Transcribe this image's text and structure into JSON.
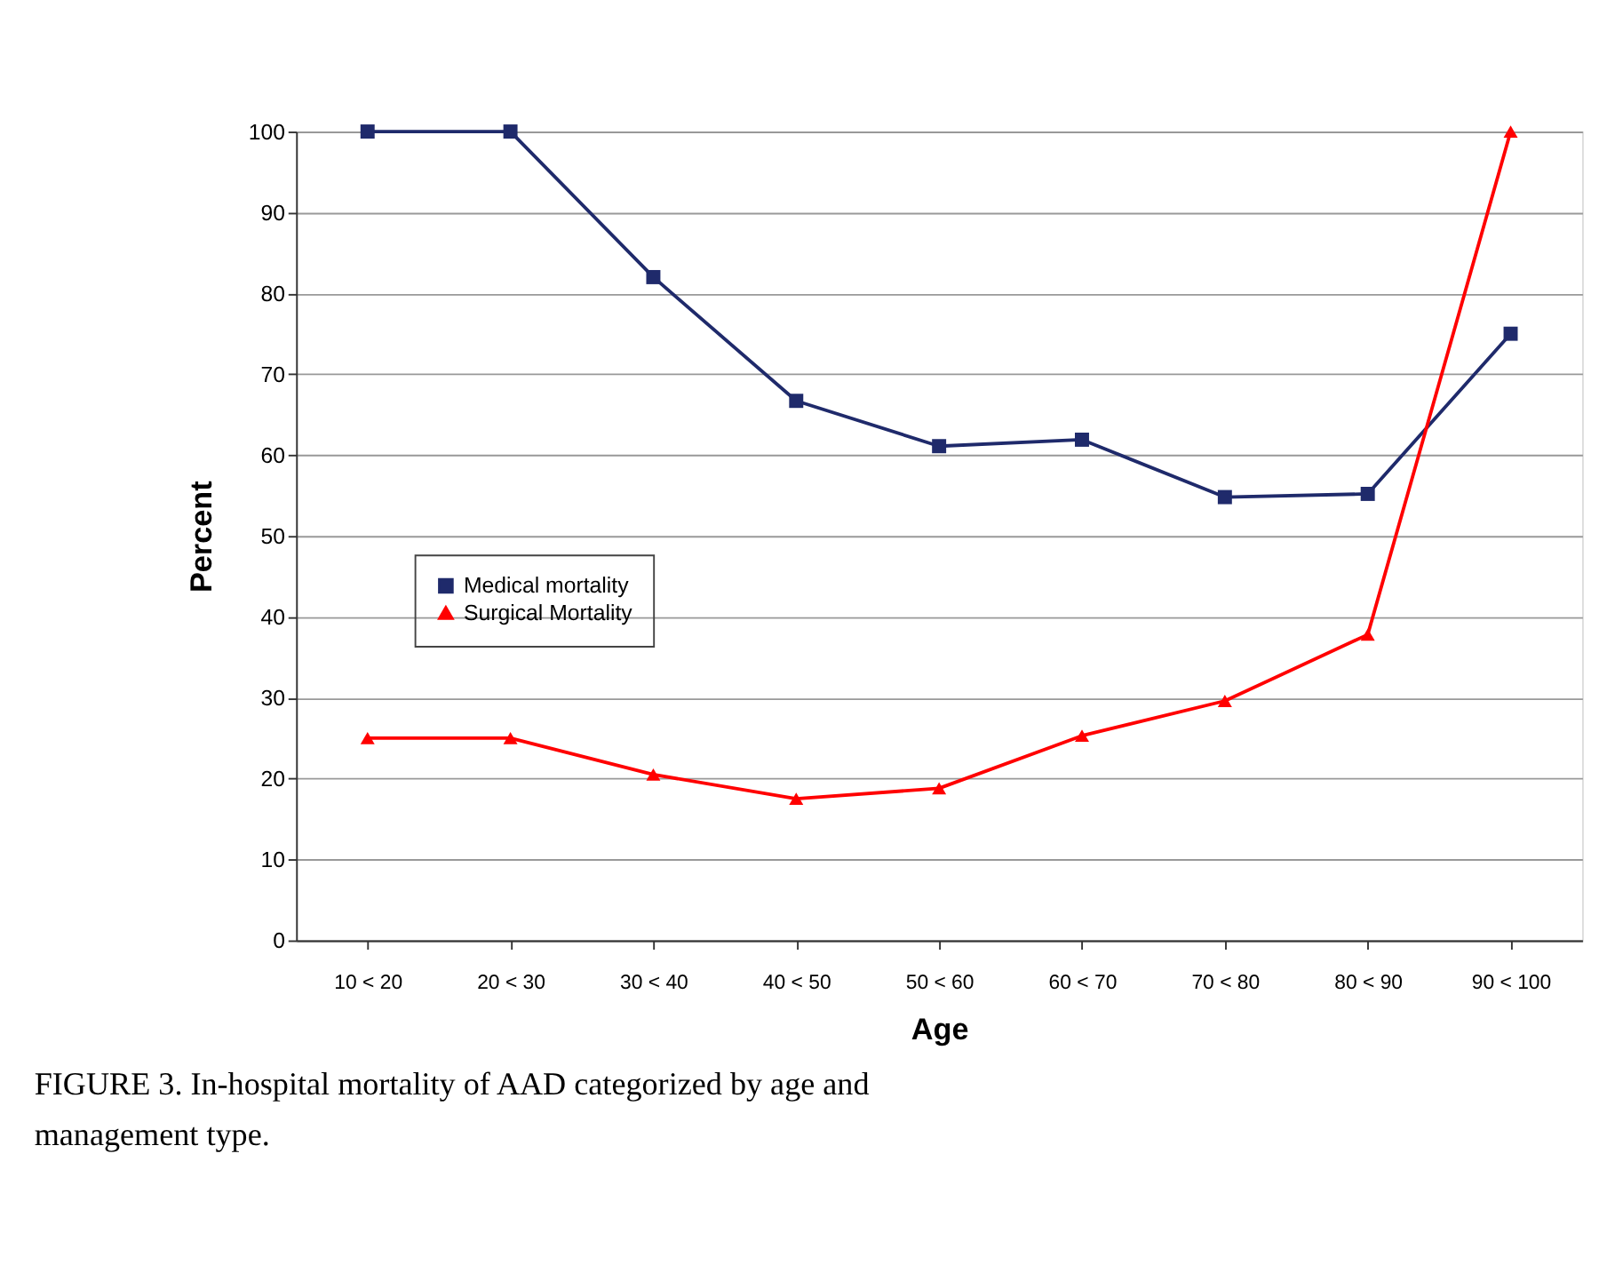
{
  "chart_data": {
    "type": "line",
    "xlabel": "Age",
    "ylabel": "Percent",
    "categories": [
      "10 < 20",
      "20 < 30",
      "30 < 40",
      "40 < 50",
      "50 < 60",
      "60 < 70",
      "70 < 80",
      "80 < 90",
      "90 < 100"
    ],
    "series": [
      {
        "name": "Medical mortality",
        "color": "#1f2a6b",
        "marker": "square",
        "values": [
          100,
          100,
          82,
          66.7,
          61.1,
          61.9,
          54.8,
          55.2,
          75
        ]
      },
      {
        "name": "Surgical Mortality",
        "color": "#ff0000",
        "marker": "triangle",
        "values": [
          25,
          25,
          20.5,
          17.5,
          18.8,
          25.3,
          29.6,
          37.8,
          100
        ]
      }
    ],
    "ylim": [
      0,
      100
    ],
    "yticks": [
      0,
      10,
      20,
      30,
      40,
      50,
      60,
      70,
      80,
      90,
      100
    ],
    "grid": "y",
    "legend": "left",
    "line_style": "solid",
    "annotations": [
      "FIGURE 3.  In-hospital mortality of AAD categorized by age and management type."
    ]
  }
}
